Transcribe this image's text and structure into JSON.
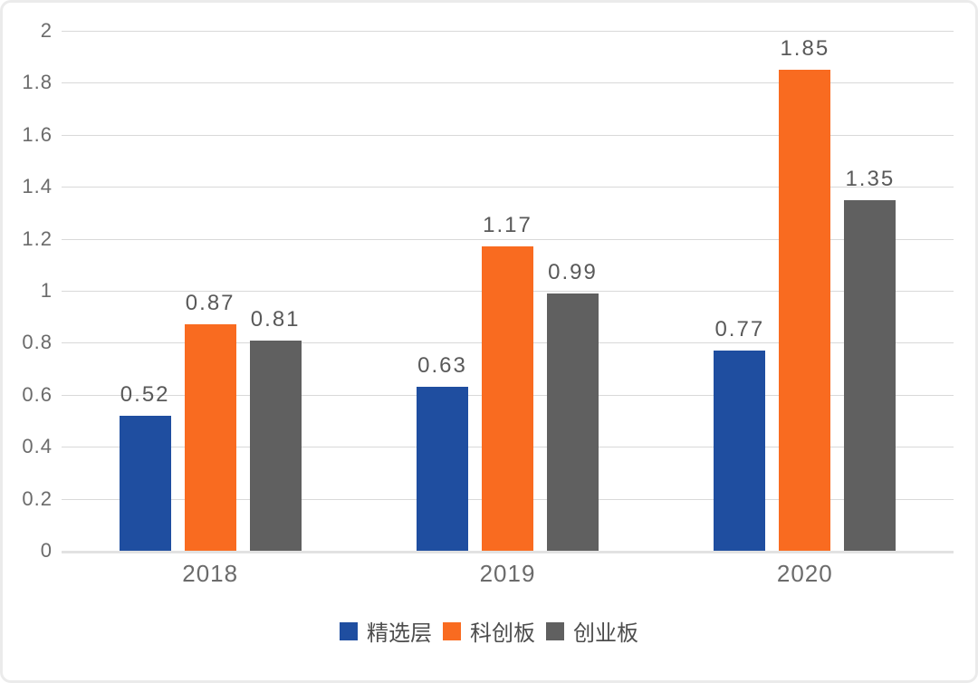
{
  "chart_data": {
    "type": "bar",
    "title": "",
    "xlabel": "",
    "ylabel": "",
    "categories": [
      "2018",
      "2019",
      "2020"
    ],
    "series": [
      {
        "name": "精选层",
        "color": "#1f4ea0",
        "values": [
          0.52,
          0.63,
          0.77
        ],
        "labels": [
          "0.52",
          "0.63",
          "0.77"
        ]
      },
      {
        "name": "科创板",
        "color": "#f96b20",
        "values": [
          0.87,
          1.17,
          1.85
        ],
        "labels": [
          "0.87",
          "1.17",
          "1.85"
        ]
      },
      {
        "name": "创业板",
        "color": "#606060",
        "values": [
          0.81,
          0.99,
          1.35
        ],
        "labels": [
          "0.81",
          "0.99",
          "1.35"
        ]
      }
    ],
    "ylim": [
      0,
      2
    ],
    "ytick_step": 0.2,
    "yticks": [
      "2",
      "1.8",
      "1.6",
      "1.4",
      "1.2",
      "1",
      "0.8",
      "0.6",
      "0.4",
      "0.2",
      "0"
    ],
    "grid": true,
    "legend_position": "bottom",
    "value_labels_shown": true
  },
  "style": {
    "bar_color_series_1": "#1f4ea0",
    "bar_color_series_2": "#f96b20",
    "bar_color_series_3": "#606060",
    "gridline_color": "#d9d9d9",
    "axis_line_color": "#e2e2e2",
    "tick_text_color": "#6b6b6b",
    "value_text_color": "#595959",
    "legend_text_color": "#4d4d4d",
    "card_border_color": "#ebebeb",
    "background_color": "#ffffff"
  }
}
